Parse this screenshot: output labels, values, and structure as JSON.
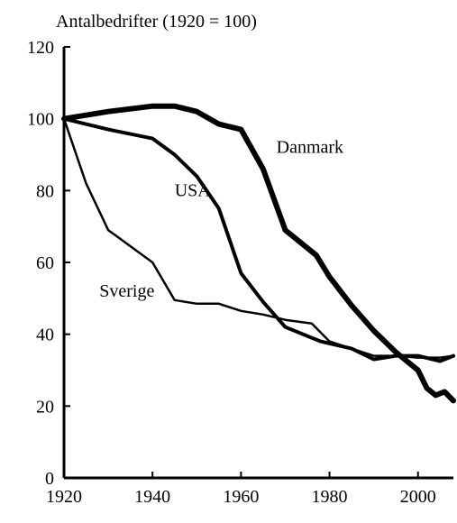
{
  "chart_data": {
    "type": "line",
    "ylabel": "Antalbedrifter (1920 = 100)",
    "xlim": [
      1920,
      2008
    ],
    "ylim": [
      0,
      120
    ],
    "xticks": [
      1920,
      1940,
      1960,
      1980,
      2000
    ],
    "yticks": [
      0,
      20,
      40,
      60,
      80,
      100,
      120
    ],
    "grid": false,
    "legend": "none",
    "series": [
      {
        "name": "Danmark",
        "color": "#000000",
        "x": [
          1920,
          1930,
          1940,
          1945,
          1950,
          1955,
          1960,
          1965,
          1970,
          1977,
          1980,
          1985,
          1990,
          1995,
          2000,
          2002,
          2004,
          2006,
          2008
        ],
        "y": [
          100,
          102,
          103.5,
          103.5,
          102,
          98.5,
          97,
          86,
          69,
          62,
          56,
          48,
          41,
          35,
          30,
          25,
          23,
          24,
          21.5
        ]
      },
      {
        "name": "USA",
        "color": "#000000",
        "x": [
          1920,
          1930,
          1940,
          1945,
          1950,
          1955,
          1960,
          1965,
          1970,
          1978,
          1985,
          1990,
          1995,
          2000,
          2005,
          2008
        ],
        "y": [
          100,
          97,
          94.5,
          90,
          84,
          75,
          57,
          49,
          42,
          38,
          36,
          33,
          34,
          34,
          32.5,
          34
        ]
      },
      {
        "name": "Sverige",
        "color": "#000000",
        "x": [
          1920,
          1925,
          1930,
          1940,
          1945,
          1950,
          1955,
          1960,
          1965,
          1970,
          1976,
          1980,
          1990,
          1995,
          2000,
          2005,
          2008
        ],
        "y": [
          100,
          82,
          69,
          60,
          49.5,
          48.5,
          48.5,
          46.5,
          45.5,
          44,
          43,
          38,
          34,
          34,
          33.5,
          33.5,
          34
        ]
      }
    ]
  }
}
